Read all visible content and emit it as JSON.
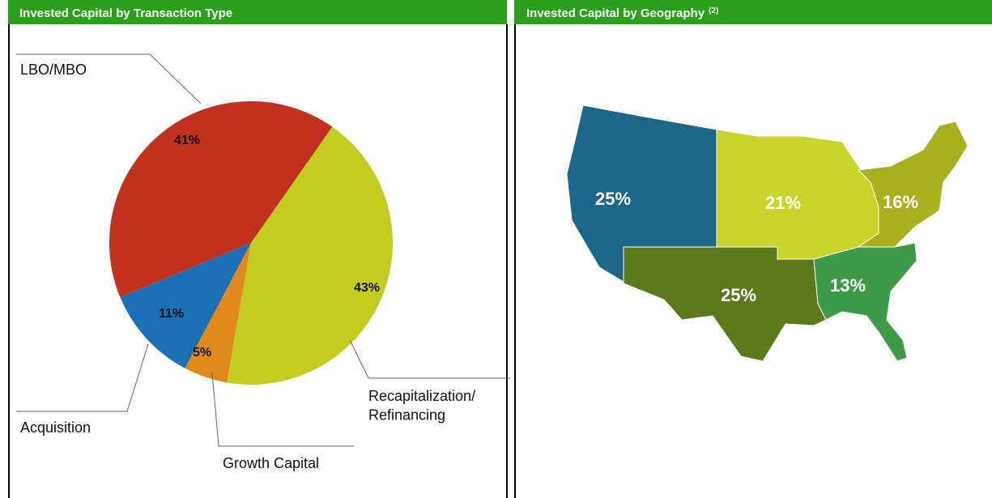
{
  "chart_data": [
    {
      "type": "pie",
      "title": "Invested Capital by Transaction Type",
      "categories": [
        "LBO/MBO",
        "Recapitalization/\nRefinancing",
        "Growth Capital",
        "Acquisition"
      ],
      "values": [
        41,
        43,
        5,
        11
      ],
      "value_labels": [
        "41%",
        "43%",
        "5%",
        "11%"
      ],
      "colors": [
        "#c0311f",
        "#c4cc22",
        "#e08a1e",
        "#1a6fb5"
      ]
    },
    {
      "type": "map",
      "title": "Invested Capital by Geography",
      "title_note": "(2)",
      "values": [
        25,
        21,
        16,
        25,
        13
      ],
      "value_labels": [
        "25%",
        "21%",
        "16%",
        "25%",
        "13%"
      ],
      "colors": [
        "#1d6688",
        "#c8d42c",
        "#a8b020",
        "#5c7a1c",
        "#3f9a48"
      ]
    }
  ]
}
